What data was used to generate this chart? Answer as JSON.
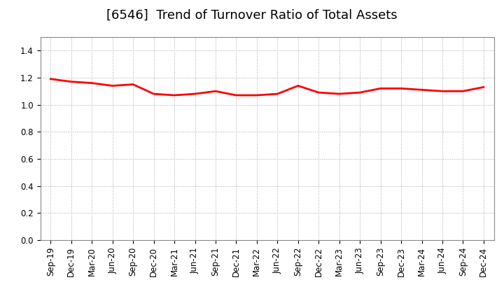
{
  "title": "[6546]  Trend of Turnover Ratio of Total Assets",
  "x_labels": [
    "Sep-19",
    "Dec-19",
    "Mar-20",
    "Jun-20",
    "Sep-20",
    "Dec-20",
    "Mar-21",
    "Jun-21",
    "Sep-21",
    "Dec-21",
    "Mar-22",
    "Jun-22",
    "Sep-22",
    "Dec-22",
    "Mar-23",
    "Jun-23",
    "Sep-23",
    "Dec-23",
    "Mar-24",
    "Jun-24",
    "Sep-24",
    "Dec-24"
  ],
  "y_values": [
    1.19,
    1.17,
    1.16,
    1.14,
    1.15,
    1.08,
    1.07,
    1.08,
    1.1,
    1.07,
    1.07,
    1.08,
    1.14,
    1.09,
    1.08,
    1.09,
    1.12,
    1.12,
    1.11,
    1.1,
    1.1,
    1.13
  ],
  "line_color": "#ff0000",
  "line_width": 2.0,
  "ylim": [
    0.0,
    1.5
  ],
  "yticks": [
    0.0,
    0.2,
    0.4,
    0.6,
    0.8,
    1.0,
    1.2,
    1.4
  ],
  "bg_color": "#ffffff",
  "grid_color": "#aaaaaa",
  "title_fontsize": 13,
  "tick_fontsize": 8.5
}
